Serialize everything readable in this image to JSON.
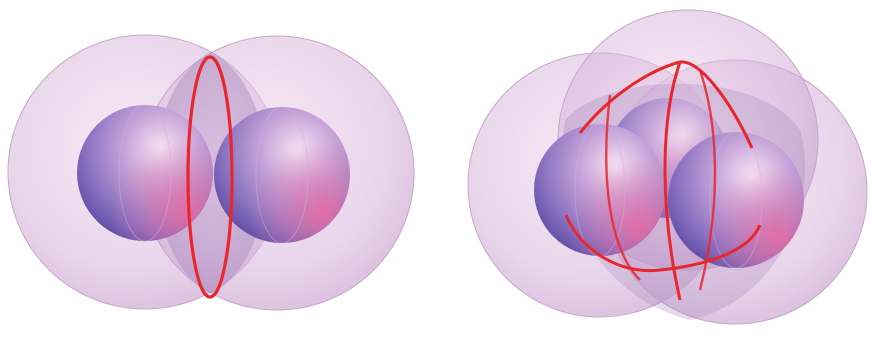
{
  "figure": {
    "panels": [
      {
        "id": "two-sphere-configuration",
        "inner_sphere_count": 2,
        "outer_shell_count": 2,
        "intersection_curve_count": 1
      },
      {
        "id": "three-sphere-configuration",
        "inner_sphere_count": 3,
        "outer_shell_count": 3,
        "intersection_curve_count": 3
      }
    ],
    "colors": {
      "shell_fill": "#d9b8dc",
      "shell_edge": "#c7a3cb",
      "sphere_highlight": "#f3d6ee",
      "sphere_mid": "#b48bc8",
      "sphere_shadow": "#6d58b0",
      "sphere_warm": "#e96aa2",
      "intersection_curve": "#e8262b",
      "background": "#ffffff"
    }
  }
}
